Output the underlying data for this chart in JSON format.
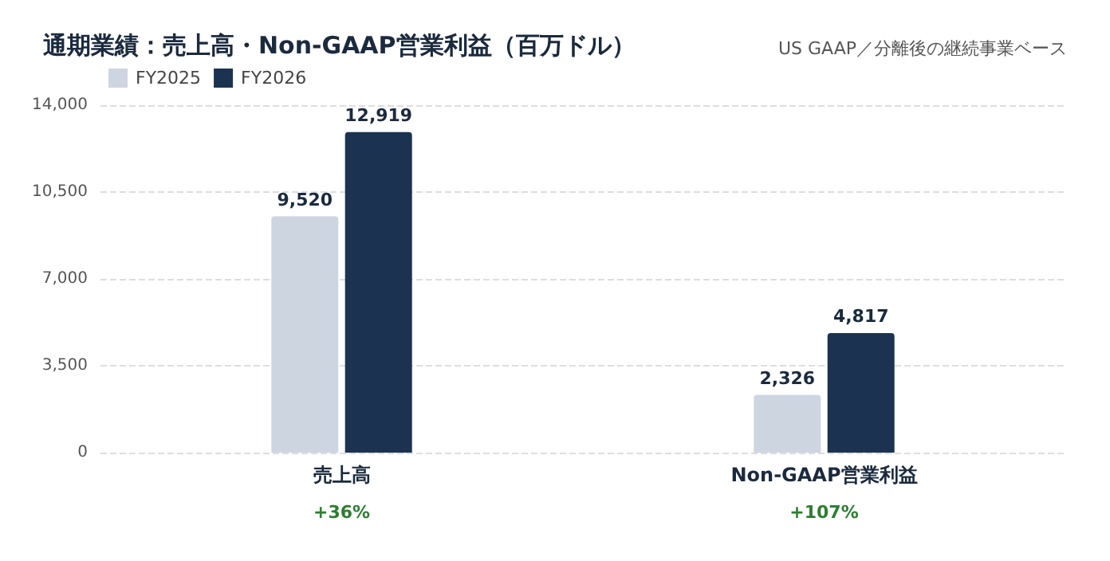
{
  "chart_data": {
    "type": "bar",
    "title": "通期業績：売上高・Non-GAAP営業利益（百万ドル）",
    "subtitle": "US GAAP／分離後の継続事業ベース",
    "categories": [
      "売上高",
      "Non-GAAP営業利益"
    ],
    "series": [
      {
        "name": "FY2025",
        "color": "#cdd5e1",
        "values": [
          9520,
          2326
        ],
        "value_labels": [
          "9,520",
          "2,326"
        ]
      },
      {
        "name": "FY2026",
        "color": "#1b3350",
        "values": [
          12919,
          4817
        ],
        "value_labels": [
          "12,919",
          "4,817"
        ]
      }
    ],
    "ylim": [
      0,
      14000
    ],
    "yticks": [
      0,
      {
        "value": 3500,
        "label": "3,500"
      },
      {
        "value": 7000,
        "label": "7,000"
      },
      {
        "value": 10500,
        "label": "10,500"
      },
      {
        "value": 14000,
        "label": "14,000"
      }
    ],
    "grid": "y",
    "legend": "top left",
    "annotations": [
      "+36%",
      "+107%"
    ]
  }
}
